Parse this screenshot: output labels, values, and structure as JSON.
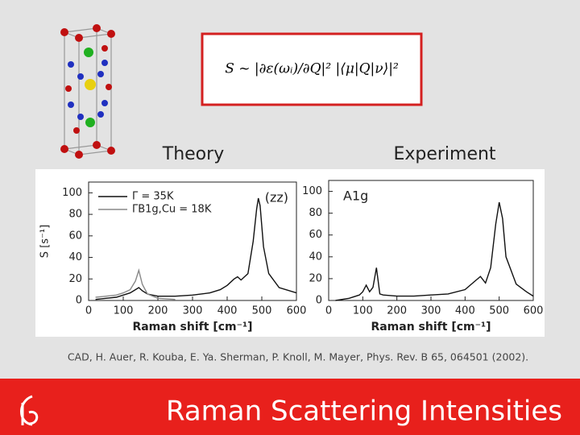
{
  "formula": "S ~ |∂ε(ωᵢ)/∂Q|² |⟨μ|Q|ν⟩|²",
  "theory_label": "Theory",
  "experiment_label": "Experiment",
  "citation": "CAD, H. Auer, R. Kouba, E. Ya. Sherman, P. Knoll, M. Mayer, Phys. Rev. B 65, 064501 (2002).",
  "slide_title": "Raman Scattering Intensities",
  "chart_data": [
    {
      "type": "line",
      "xlabel": "Raman shift [cm⁻¹]",
      "ylabel": "S [s⁻¹]",
      "annotation": "(zz)",
      "x": [
        20,
        50,
        80,
        100,
        120,
        135,
        145,
        155,
        170,
        200,
        250,
        300,
        350,
        380,
        400,
        420,
        430,
        440,
        460,
        475,
        485,
        490,
        495,
        505,
        520,
        550,
        600
      ],
      "series": [
        {
          "name": "Γ = 35K",
          "color": "#111111",
          "values": [
            1,
            2,
            3,
            5,
            7,
            10,
            12,
            9,
            6,
            4,
            4,
            5,
            7,
            10,
            14,
            20,
            22,
            19,
            25,
            55,
            85,
            95,
            88,
            50,
            25,
            12,
            7
          ]
        },
        {
          "name": "ΓB1g,Cu = 18K",
          "color": "#888888",
          "values": [
            3,
            4,
            5,
            7,
            10,
            18,
            28,
            15,
            6,
            2,
            1,
            null,
            null,
            null,
            null,
            null,
            null,
            null,
            null,
            null,
            null,
            null,
            null,
            null,
            null,
            null,
            null
          ]
        }
      ],
      "xlim": [
        0,
        600
      ],
      "xticks": [
        0,
        100,
        200,
        300,
        400,
        500,
        600
      ],
      "ylim": [
        0,
        110
      ],
      "yticks": [
        0,
        20,
        40,
        60,
        80,
        100
      ]
    },
    {
      "type": "line",
      "xlabel": "Raman shift [cm⁻¹]",
      "annotation": "A1g",
      "x": [
        20,
        60,
        90,
        100,
        110,
        120,
        130,
        140,
        150,
        160,
        200,
        250,
        300,
        350,
        400,
        430,
        445,
        460,
        475,
        490,
        500,
        510,
        520,
        550,
        580,
        600
      ],
      "series": [
        {
          "color": "#111111",
          "values": [
            0,
            2,
            5,
            8,
            14,
            8,
            12,
            30,
            6,
            5,
            4,
            4,
            5,
            6,
            10,
            18,
            22,
            16,
            30,
            70,
            90,
            75,
            40,
            15,
            8,
            4
          ]
        }
      ],
      "xlim": [
        0,
        600
      ],
      "xticks": [
        0,
        100,
        200,
        300,
        400,
        500,
        600
      ],
      "ylim": [
        0,
        110
      ],
      "yticks": [
        0,
        20,
        40,
        60,
        80,
        100
      ]
    }
  ]
}
